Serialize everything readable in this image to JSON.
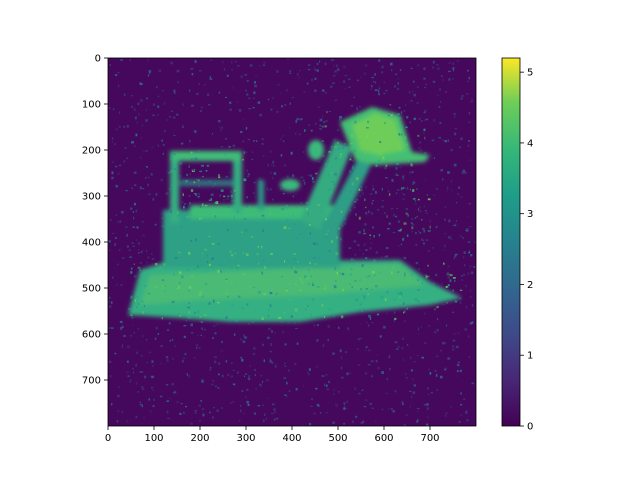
{
  "chart_data": {
    "type": "heatmap",
    "title": "",
    "xlabel": "",
    "ylabel": "",
    "image_size": [
      800,
      800
    ],
    "xlim": [
      0,
      800
    ],
    "ylim": [
      800,
      0
    ],
    "xticks": [
      0,
      100,
      200,
      300,
      400,
      500,
      600,
      700
    ],
    "yticks": [
      0,
      100,
      200,
      300,
      400,
      500,
      600,
      700
    ],
    "xtick_labels": [
      "0",
      "100",
      "200",
      "300",
      "400",
      "500",
      "600",
      "700"
    ],
    "ytick_labels": [
      "0",
      "100",
      "200",
      "300",
      "400",
      "500",
      "600",
      "700"
    ],
    "colormap": "viridis",
    "colorbar": {
      "min": 0,
      "max": 5.2,
      "ticks": [
        0,
        1,
        2,
        3,
        4,
        5
      ],
      "tick_labels": [
        "0",
        "1",
        "2",
        "3",
        "4",
        "5"
      ]
    },
    "grid": false,
    "subject": "noisy density rendering of a bulldozer with raised front bucket",
    "background_level": 0.3,
    "object_level": 3.2,
    "highlight_level": 4.0
  }
}
